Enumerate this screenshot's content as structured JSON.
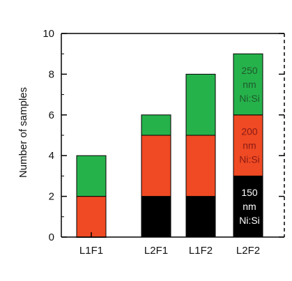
{
  "chart_data": {
    "type": "bar",
    "stacked": true,
    "categories": [
      "L1F1",
      "L2F1",
      "L1F2",
      "L2F2"
    ],
    "series": [
      {
        "color": "#000000",
        "values": [
          0,
          2,
          2,
          3
        ]
      },
      {
        "color": "#ef4a23",
        "values": [
          2,
          3,
          3,
          3
        ]
      },
      {
        "color": "#26b24b",
        "values": [
          2,
          1,
          3,
          3
        ]
      }
    ],
    "segment_labels": [
      {
        "category": "L2F2",
        "series_index": 0,
        "lines": [
          "150",
          "nm",
          "Ni:Si"
        ],
        "color": "#ffffff"
      },
      {
        "category": "L2F2",
        "series_index": 1,
        "lines": [
          "200",
          "nm",
          "Ni:Si"
        ],
        "color": "#8b1a14"
      },
      {
        "category": "L2F2",
        "series_index": 2,
        "lines": [
          "250",
          "nm",
          "Ni:Si"
        ],
        "color": "#1d5a2c"
      }
    ],
    "ylabel": "Number of samples",
    "xlabel": "",
    "title": "",
    "ylim": [
      0,
      10
    ],
    "yticks": [
      0,
      2,
      4,
      6,
      8,
      10
    ],
    "grid": false,
    "legend": "none"
  }
}
